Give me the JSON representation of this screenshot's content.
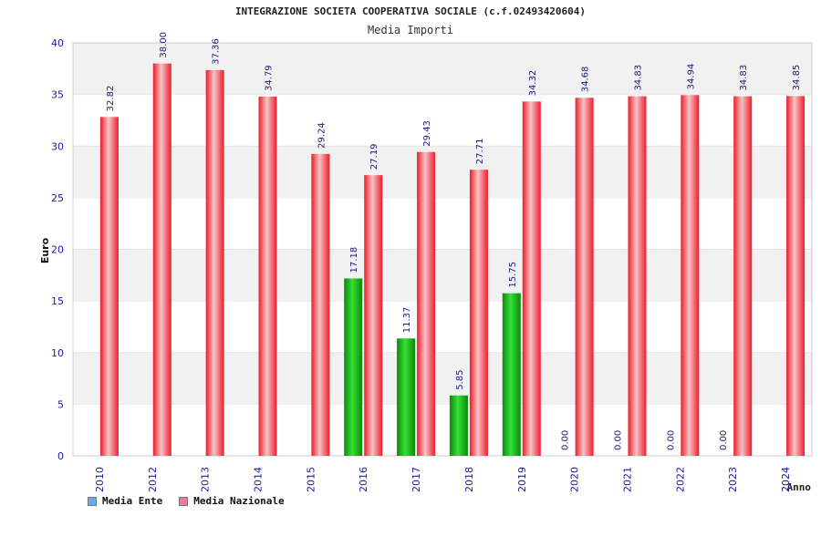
{
  "title": "INTEGRAZIONE SOCIETA COOPERATIVA SOCIALE (c.f.02493420604)",
  "subtitle": "Media Importi",
  "colors": {
    "ente": "#12b012",
    "nazionale": "#ee1c2a",
    "legend_ente": "#6aa8e8",
    "legend_nazionale": "#e77aa8",
    "axis_text": "#1a1aa6",
    "grid_band": "#f1f1f1"
  },
  "chart_data": {
    "type": "bar",
    "categories": [
      "2010",
      "2012",
      "2013",
      "2014",
      "2015",
      "2016",
      "2017",
      "2018",
      "2019",
      "2020",
      "2021",
      "2022",
      "2023",
      "2024"
    ],
    "series": [
      {
        "name": "Media Ente",
        "values": [
          null,
          null,
          null,
          null,
          null,
          17.18,
          11.37,
          5.85,
          15.75,
          0.0,
          0.0,
          0.0,
          0.0,
          null
        ],
        "labels": [
          "",
          "",
          "",
          "",
          "",
          "17.18",
          "11.37",
          "5.85",
          "15.75",
          "0.00",
          "0.00",
          "0.00",
          "0.00",
          ""
        ]
      },
      {
        "name": "Media Nazionale",
        "values": [
          32.82,
          38.0,
          37.36,
          34.79,
          29.24,
          27.19,
          29.43,
          27.71,
          34.32,
          34.68,
          34.83,
          34.94,
          34.83,
          34.85
        ],
        "labels": [
          "32.82",
          "38.00",
          "37.36",
          "34.79",
          "29.24",
          "27.19",
          "29.43",
          "27.71",
          "34.32",
          "34.68",
          "34.83",
          "34.94",
          "34.83",
          "34.85"
        ]
      }
    ],
    "xlabel": "Anno",
    "ylabel": "Euro",
    "ylim": [
      0,
      40
    ],
    "yticks": [
      "0",
      "5",
      "10",
      "15",
      "20",
      "25",
      "30",
      "35",
      "40"
    ],
    "grid": true,
    "legend_position": "bottom-left"
  }
}
